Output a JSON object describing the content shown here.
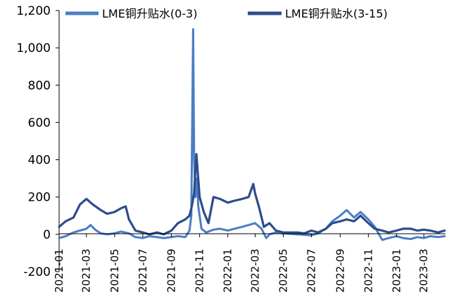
{
  "chart_data": {
    "type": "line",
    "title": "",
    "xlabel": "",
    "ylabel": "",
    "ylim": [
      -200,
      1200
    ],
    "xlim": [
      "2021-01-01",
      "2023-04-17"
    ],
    "y_ticks": [
      -200,
      0,
      200,
      400,
      600,
      800,
      1000,
      1200
    ],
    "y_tick_labels": [
      "-200",
      "0",
      "200",
      "400",
      "600",
      "800",
      "1,000",
      "1,200"
    ],
    "x_tick_labels": [
      "2021-01",
      "2021-03",
      "2021-05",
      "2021-07",
      "2021-09",
      "2021-11",
      "2022-01",
      "2022-03",
      "2022-05",
      "2022-07",
      "2022-09",
      "2022-11",
      "2023-01",
      "2023-03"
    ],
    "x_tick_dates": [
      "2021-01-01",
      "2021-03-01",
      "2021-05-01",
      "2021-07-01",
      "2021-09-01",
      "2021-11-01",
      "2022-01-01",
      "2022-03-01",
      "2022-05-01",
      "2022-07-01",
      "2022-09-01",
      "2022-11-01",
      "2023-01-01",
      "2023-03-01"
    ],
    "grid": false,
    "legend_position": "top",
    "series": [
      {
        "name": "LME铜升贴水(0-3)",
        "color": "#4A7EC8",
        "points": [
          [
            "2021-01-01",
            -20
          ],
          [
            "2021-01-15",
            -10
          ],
          [
            "2021-02-01",
            10
          ],
          [
            "2021-02-15",
            20
          ],
          [
            "2021-03-01",
            30
          ],
          [
            "2021-03-10",
            50
          ],
          [
            "2021-03-20",
            25
          ],
          [
            "2021-04-01",
            5
          ],
          [
            "2021-04-15",
            0
          ],
          [
            "2021-05-01",
            5
          ],
          [
            "2021-05-15",
            15
          ],
          [
            "2021-06-01",
            5
          ],
          [
            "2021-06-15",
            -15
          ],
          [
            "2021-07-01",
            -20
          ],
          [
            "2021-07-15",
            -10
          ],
          [
            "2021-08-01",
            -15
          ],
          [
            "2021-08-15",
            -20
          ],
          [
            "2021-09-01",
            -15
          ],
          [
            "2021-09-15",
            -10
          ],
          [
            "2021-10-01",
            -15
          ],
          [
            "2021-10-10",
            20
          ],
          [
            "2021-10-14",
            100
          ],
          [
            "2021-10-16",
            600
          ],
          [
            "2021-10-18",
            1100
          ],
          [
            "2021-10-20",
            400
          ],
          [
            "2021-10-23",
            200
          ],
          [
            "2021-10-26",
            300
          ],
          [
            "2021-10-29",
            150
          ],
          [
            "2021-11-01",
            100
          ],
          [
            "2021-11-05",
            30
          ],
          [
            "2021-11-15",
            10
          ],
          [
            "2021-12-01",
            25
          ],
          [
            "2021-12-15",
            30
          ],
          [
            "2022-01-01",
            20
          ],
          [
            "2022-01-15",
            30
          ],
          [
            "2022-02-01",
            40
          ],
          [
            "2022-02-15",
            50
          ],
          [
            "2022-03-01",
            60
          ],
          [
            "2022-03-15",
            30
          ],
          [
            "2022-03-25",
            -20
          ],
          [
            "2022-04-01",
            0
          ],
          [
            "2022-04-15",
            10
          ],
          [
            "2022-05-01",
            5
          ],
          [
            "2022-06-01",
            0
          ],
          [
            "2022-07-01",
            -5
          ],
          [
            "2022-07-15",
            5
          ],
          [
            "2022-08-01",
            30
          ],
          [
            "2022-08-15",
            70
          ],
          [
            "2022-09-01",
            100
          ],
          [
            "2022-09-15",
            130
          ],
          [
            "2022-10-01",
            90
          ],
          [
            "2022-10-15",
            120
          ],
          [
            "2022-11-01",
            80
          ],
          [
            "2022-11-15",
            40
          ],
          [
            "2022-12-01",
            -30
          ],
          [
            "2022-12-15",
            -20
          ],
          [
            "2023-01-01",
            -10
          ],
          [
            "2023-01-15",
            -20
          ],
          [
            "2023-02-01",
            -25
          ],
          [
            "2023-02-15",
            -15
          ],
          [
            "2023-03-01",
            -20
          ],
          [
            "2023-03-15",
            -10
          ],
          [
            "2023-04-01",
            -15
          ],
          [
            "2023-04-15",
            -10
          ]
        ]
      },
      {
        "name": "LME铜升贴水(3-15)",
        "color": "#2E4C8C",
        "points": [
          [
            "2021-01-01",
            40
          ],
          [
            "2021-01-15",
            70
          ],
          [
            "2021-02-01",
            90
          ],
          [
            "2021-02-15",
            160
          ],
          [
            "2021-03-01",
            190
          ],
          [
            "2021-03-15",
            160
          ],
          [
            "2021-04-01",
            130
          ],
          [
            "2021-04-15",
            110
          ],
          [
            "2021-05-01",
            120
          ],
          [
            "2021-05-15",
            140
          ],
          [
            "2021-05-25",
            150
          ],
          [
            "2021-06-01",
            80
          ],
          [
            "2021-06-15",
            20
          ],
          [
            "2021-07-01",
            10
          ],
          [
            "2021-07-15",
            0
          ],
          [
            "2021-08-01",
            10
          ],
          [
            "2021-08-15",
            0
          ],
          [
            "2021-09-01",
            20
          ],
          [
            "2021-09-15",
            60
          ],
          [
            "2021-10-01",
            80
          ],
          [
            "2021-10-10",
            100
          ],
          [
            "2021-10-15",
            150
          ],
          [
            "2021-10-20",
            220
          ],
          [
            "2021-10-25",
            430
          ],
          [
            "2021-11-01",
            200
          ],
          [
            "2021-11-10",
            120
          ],
          [
            "2021-11-20",
            60
          ],
          [
            "2021-12-01",
            200
          ],
          [
            "2021-12-15",
            190
          ],
          [
            "2022-01-01",
            170
          ],
          [
            "2022-01-15",
            180
          ],
          [
            "2022-02-01",
            190
          ],
          [
            "2022-02-15",
            200
          ],
          [
            "2022-02-25",
            270
          ],
          [
            "2022-03-01",
            220
          ],
          [
            "2022-03-10",
            140
          ],
          [
            "2022-03-20",
            40
          ],
          [
            "2022-04-01",
            60
          ],
          [
            "2022-04-15",
            20
          ],
          [
            "2022-05-01",
            10
          ],
          [
            "2022-06-01",
            10
          ],
          [
            "2022-06-15",
            5
          ],
          [
            "2022-07-01",
            20
          ],
          [
            "2022-07-15",
            10
          ],
          [
            "2022-08-01",
            30
          ],
          [
            "2022-08-15",
            60
          ],
          [
            "2022-09-01",
            70
          ],
          [
            "2022-09-15",
            80
          ],
          [
            "2022-10-01",
            70
          ],
          [
            "2022-10-15",
            100
          ],
          [
            "2022-11-01",
            60
          ],
          [
            "2022-11-15",
            30
          ],
          [
            "2022-12-01",
            20
          ],
          [
            "2022-12-15",
            10
          ],
          [
            "2023-01-01",
            20
          ],
          [
            "2023-01-15",
            30
          ],
          [
            "2023-02-01",
            30
          ],
          [
            "2023-02-15",
            20
          ],
          [
            "2023-03-01",
            25
          ],
          [
            "2023-03-15",
            20
          ],
          [
            "2023-04-01",
            10
          ],
          [
            "2023-04-15",
            20
          ]
        ]
      }
    ]
  }
}
